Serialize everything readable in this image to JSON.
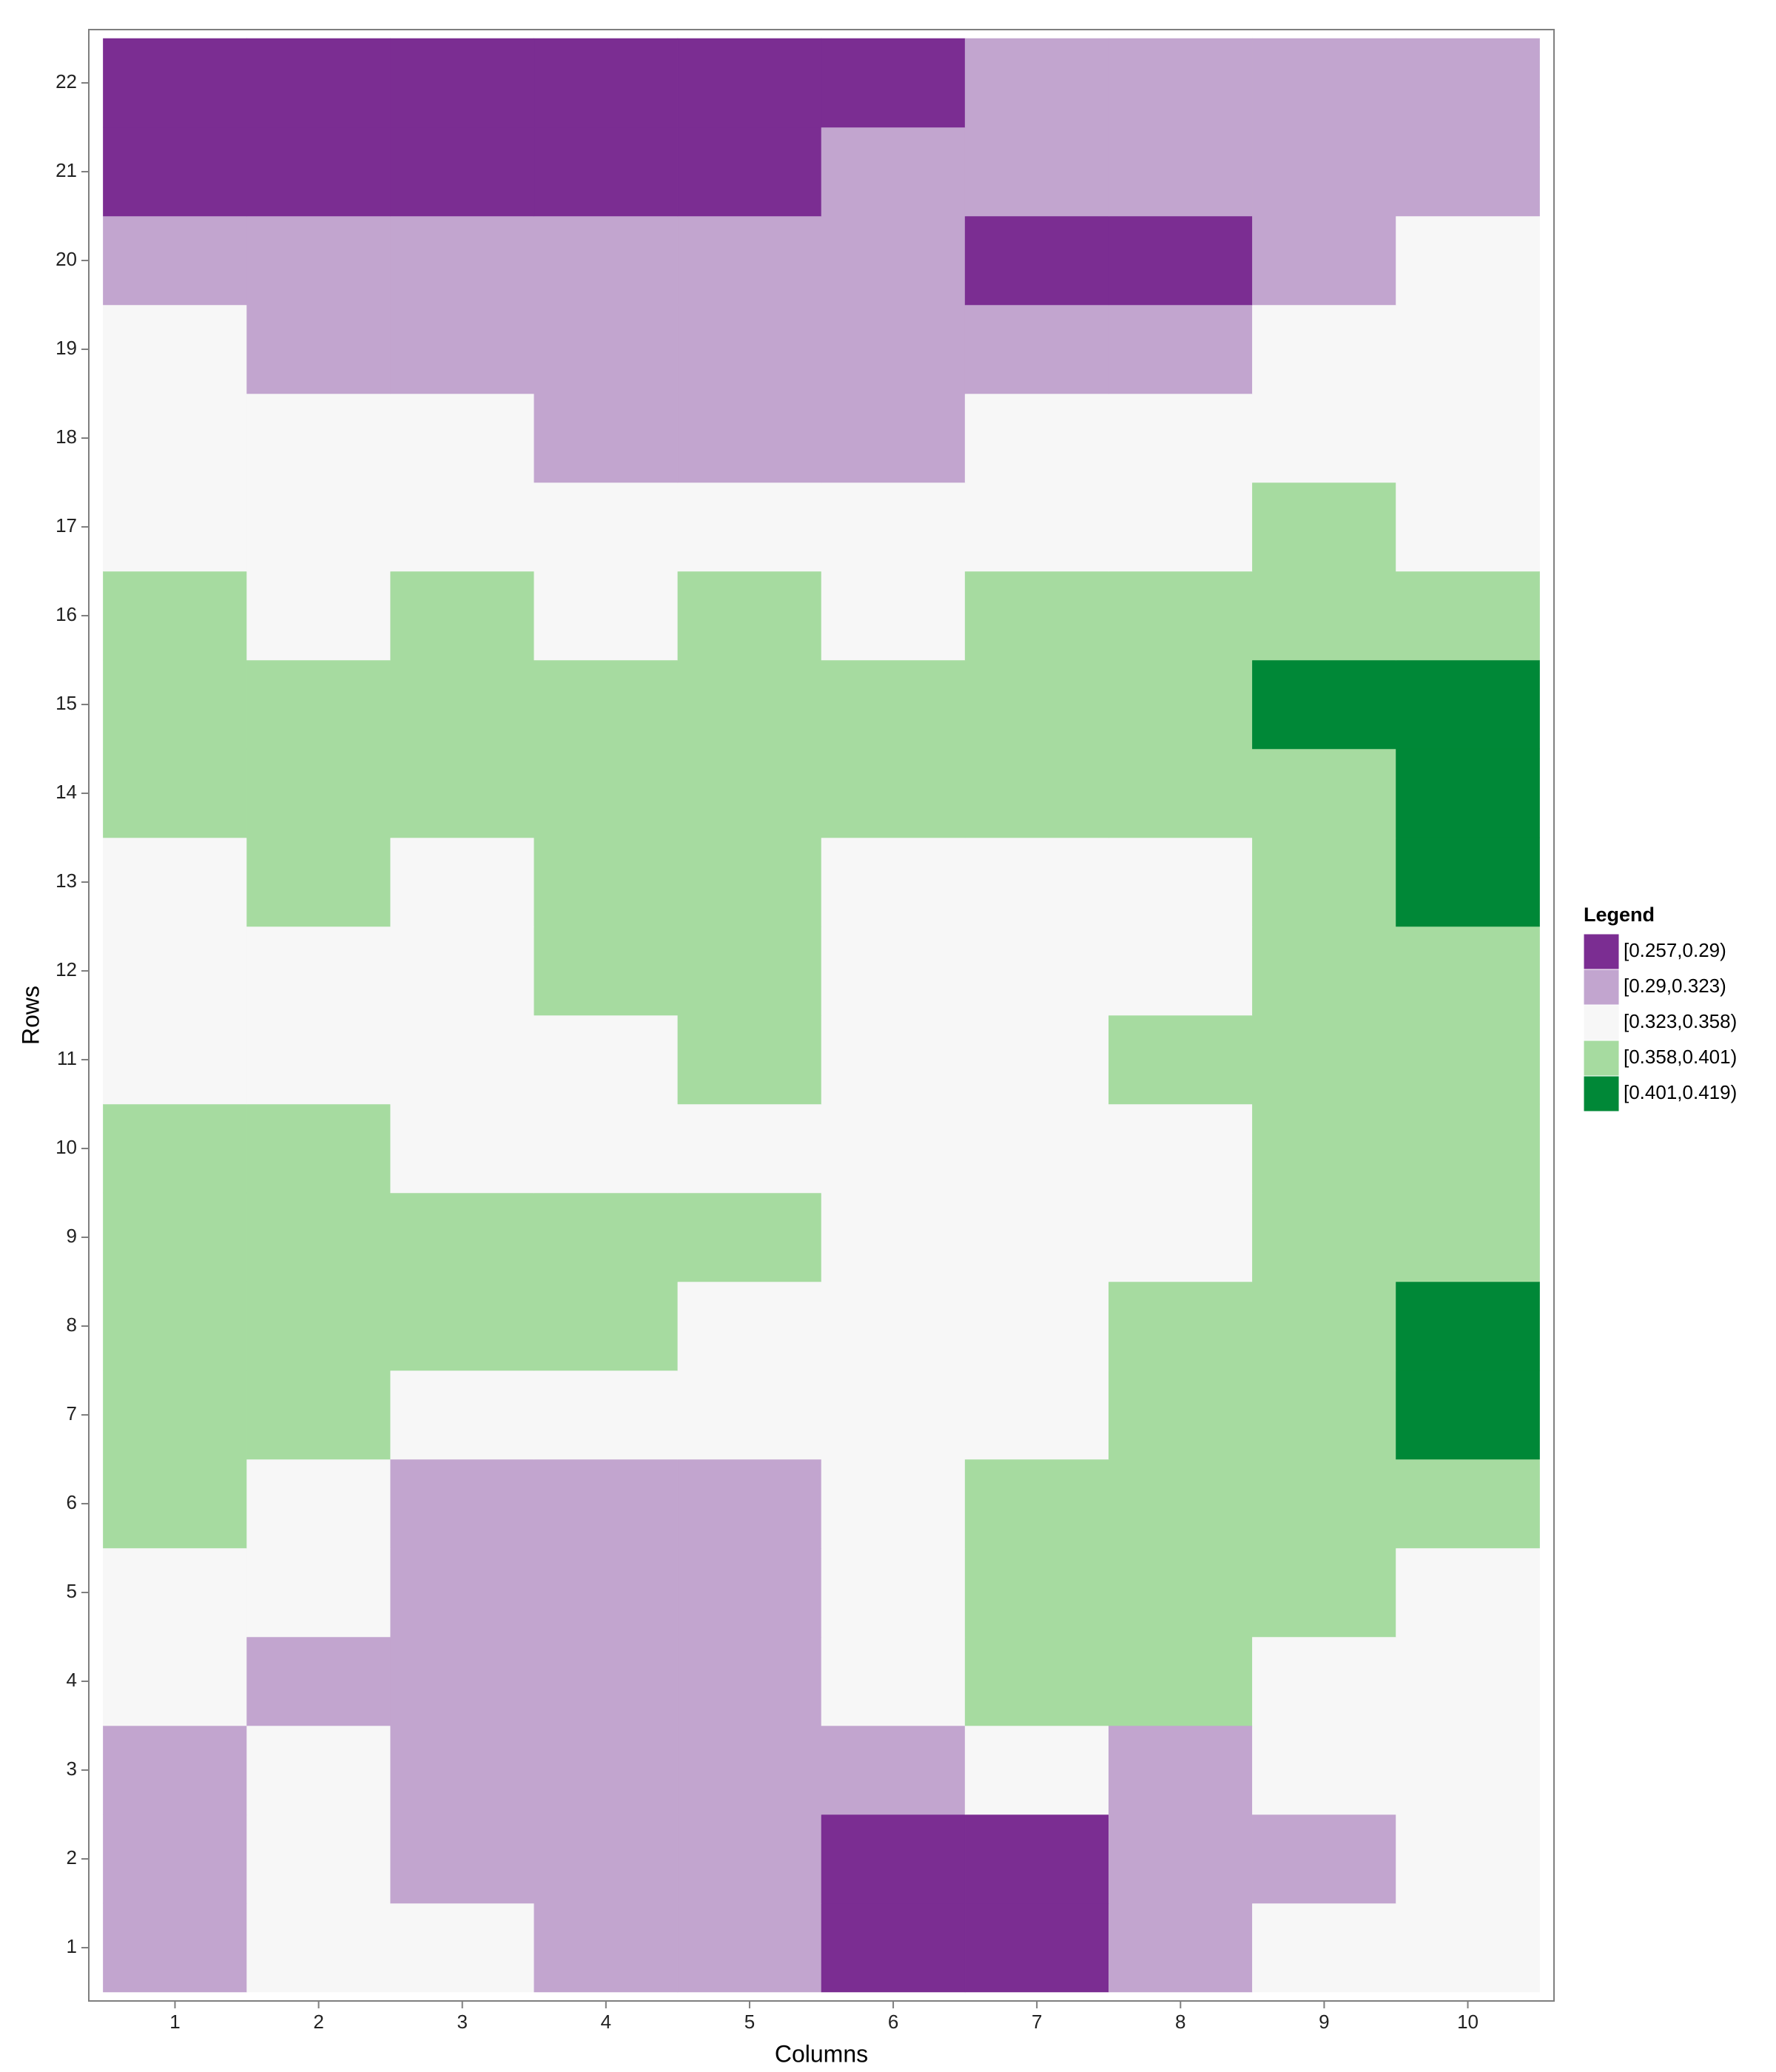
{
  "chart_data": {
    "type": "heatmap",
    "x_label": "Columns",
    "y_label": "Rows",
    "x": [
      1,
      2,
      3,
      4,
      5,
      6,
      7,
      8,
      9,
      10
    ],
    "y": [
      1,
      2,
      3,
      4,
      5,
      6,
      7,
      8,
      9,
      10,
      11,
      12,
      13,
      14,
      15,
      16,
      17,
      18,
      19,
      20,
      21,
      22
    ],
    "xlim": [
      0.4,
      10.6
    ],
    "ylim": [
      0.4,
      22.6
    ],
    "xticks": [
      1,
      2,
      3,
      4,
      5,
      6,
      7,
      8,
      9,
      10
    ],
    "yticks": [
      1,
      2,
      3,
      4,
      5,
      6,
      7,
      8,
      9,
      10,
      11,
      12,
      13,
      14,
      15,
      16,
      17,
      18,
      19,
      20,
      21,
      22
    ],
    "z": [
      [
        0.3065,
        0.3405,
        0.3405,
        0.3065,
        0.3065,
        0.2735,
        0.2735,
        0.3065,
        0.3405,
        0.3405
      ],
      [
        0.3065,
        0.3405,
        0.3065,
        0.3065,
        0.3065,
        0.2735,
        0.2735,
        0.3065,
        0.3065,
        0.3405
      ],
      [
        0.3065,
        0.3405,
        0.3065,
        0.3065,
        0.3065,
        0.3065,
        0.3405,
        0.3065,
        0.3405,
        0.3405
      ],
      [
        0.3405,
        0.3065,
        0.3065,
        0.3065,
        0.3065,
        0.3405,
        0.3795,
        0.3795,
        0.3405,
        0.3405
      ],
      [
        0.3405,
        0.3405,
        0.3065,
        0.3065,
        0.3065,
        0.3405,
        0.3795,
        0.3795,
        0.3795,
        0.3405
      ],
      [
        0.3795,
        0.3405,
        0.3065,
        0.3065,
        0.3065,
        0.3405,
        0.3795,
        0.3795,
        0.3795,
        0.3795
      ],
      [
        0.3795,
        0.3795,
        0.3405,
        0.3405,
        0.3405,
        0.3405,
        0.3405,
        0.3795,
        0.3795,
        0.41
      ],
      [
        0.3795,
        0.3795,
        0.3795,
        0.3795,
        0.3405,
        0.3405,
        0.3405,
        0.3795,
        0.3795,
        0.41
      ],
      [
        0.3795,
        0.3795,
        0.3795,
        0.3795,
        0.3795,
        0.3405,
        0.3405,
        0.3405,
        0.3795,
        0.3795
      ],
      [
        0.3795,
        0.3795,
        0.3405,
        0.3405,
        0.3405,
        0.3405,
        0.3405,
        0.3405,
        0.3795,
        0.3795
      ],
      [
        0.3405,
        0.3405,
        0.3405,
        0.3405,
        0.3795,
        0.3405,
        0.3405,
        0.3795,
        0.3795,
        0.3795
      ],
      [
        0.3405,
        0.3405,
        0.3405,
        0.3795,
        0.3795,
        0.3405,
        0.3405,
        0.3405,
        0.3795,
        0.3795
      ],
      [
        0.3405,
        0.3795,
        0.3405,
        0.3795,
        0.3795,
        0.3405,
        0.3405,
        0.3405,
        0.3795,
        0.41
      ],
      [
        0.3795,
        0.3795,
        0.3795,
        0.3795,
        0.3795,
        0.3795,
        0.3795,
        0.3795,
        0.3795,
        0.41
      ],
      [
        0.3795,
        0.3795,
        0.3795,
        0.3795,
        0.3795,
        0.3795,
        0.3795,
        0.3795,
        0.41,
        0.41
      ],
      [
        0.3795,
        0.3405,
        0.3795,
        0.3405,
        0.3795,
        0.3405,
        0.3795,
        0.3795,
        0.3795,
        0.3795
      ],
      [
        0.3405,
        0.3405,
        0.3405,
        0.3405,
        0.3405,
        0.3405,
        0.3405,
        0.3405,
        0.3795,
        0.3405
      ],
      [
        0.3405,
        0.3405,
        0.3405,
        0.3065,
        0.3065,
        0.3065,
        0.3405,
        0.3405,
        0.3405,
        0.3405
      ],
      [
        0.3405,
        0.3065,
        0.3065,
        0.3065,
        0.3065,
        0.3065,
        0.3065,
        0.3065,
        0.3405,
        0.3405
      ],
      [
        0.3065,
        0.3065,
        0.3065,
        0.3065,
        0.3065,
        0.3065,
        0.2735,
        0.2735,
        0.3065,
        0.3405
      ],
      [
        0.2735,
        0.2735,
        0.2735,
        0.2735,
        0.2735,
        0.3065,
        0.3065,
        0.3065,
        0.3065,
        0.3065
      ],
      [
        0.2735,
        0.2735,
        0.2735,
        0.2735,
        0.2735,
        0.2735,
        0.3065,
        0.3065,
        0.3065,
        0.3065
      ]
    ],
    "legend": {
      "title": "Legend",
      "position": "right",
      "breaks": [
        0.257,
        0.29,
        0.323,
        0.358,
        0.401,
        0.419
      ],
      "labels": [
        "[0.257,0.29)",
        "[0.29,0.323)",
        "[0.323,0.358)",
        "[0.358,0.401)",
        "[0.401,0.419)"
      ],
      "colors": [
        "#7b2d92",
        "#c2a5cf",
        "#f7f7f7",
        "#a6dba0",
        "#008837"
      ]
    }
  }
}
